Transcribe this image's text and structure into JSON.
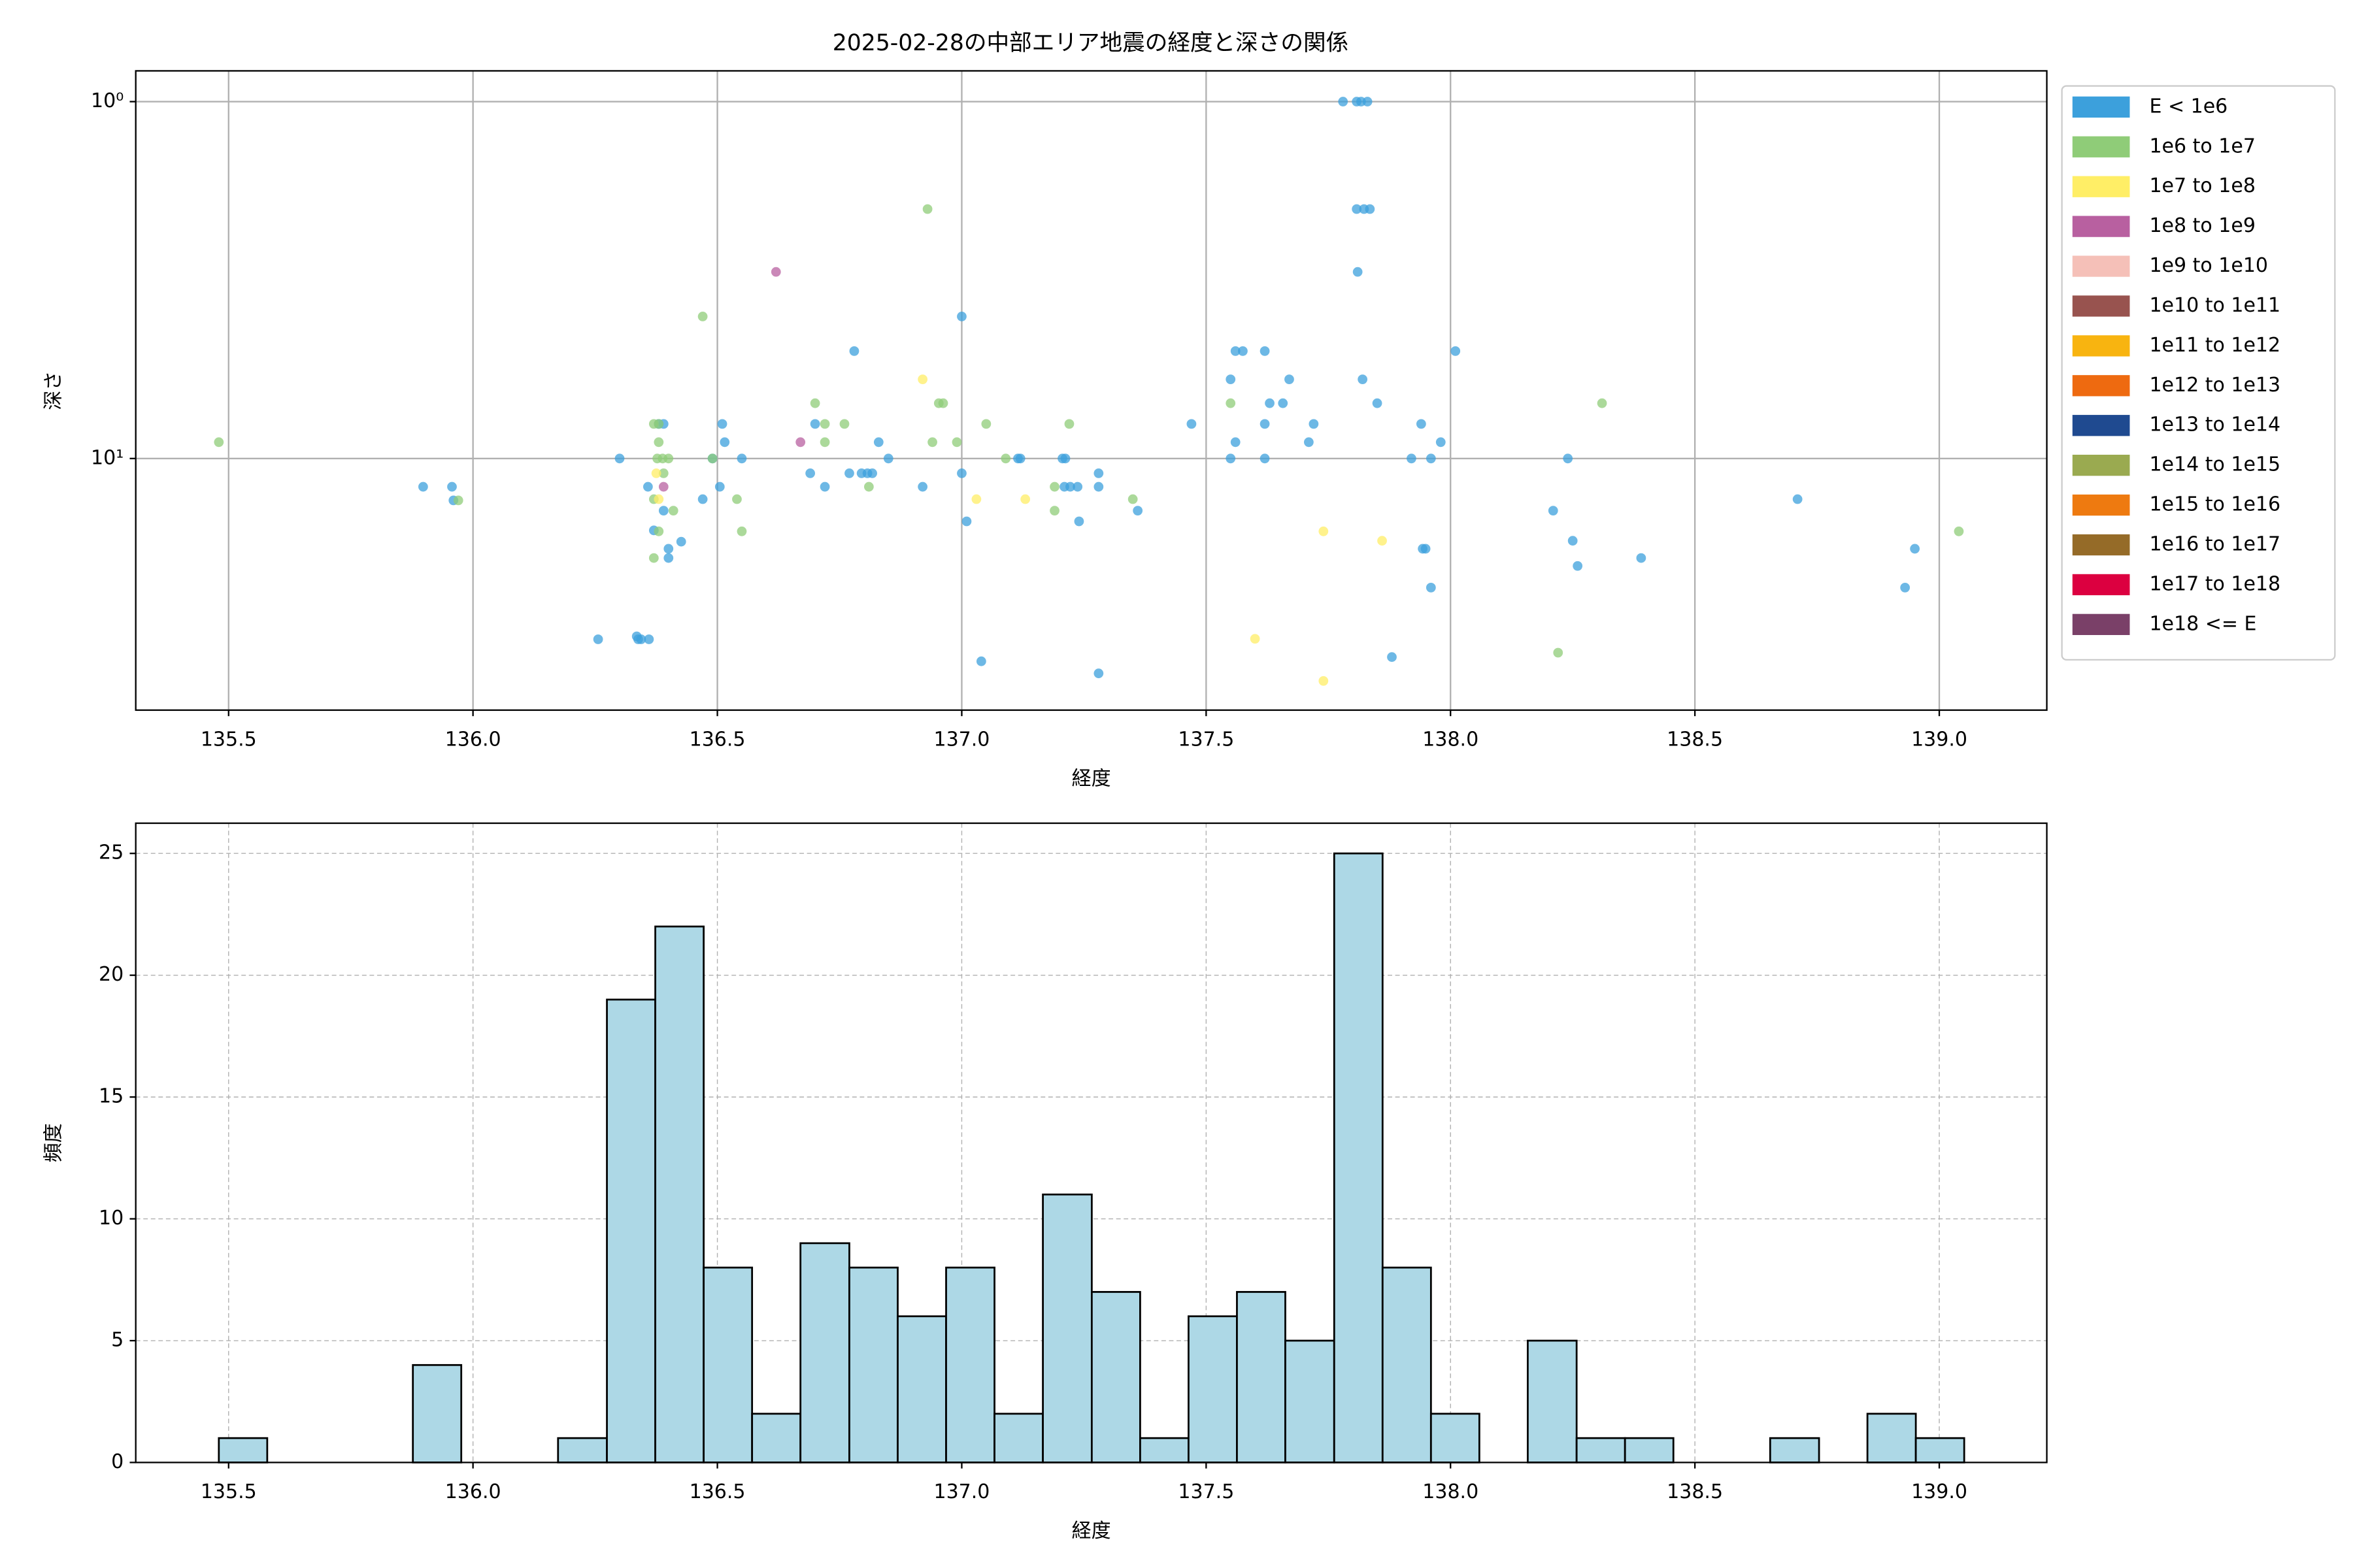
{
  "chart_data": [
    {
      "type": "scatter",
      "title": "2025-02-28の中部エリア地震の経度と深さの関係",
      "xlabel": "経度",
      "ylabel": "深さ",
      "xlim": [
        135.31,
        139.22
      ],
      "xticks": [
        135.5,
        {
          "value": 136,
          "label": "136.0"
        },
        136.5,
        {
          "value": 137,
          "label": "137.0"
        },
        137.5,
        {
          "value": 138,
          "label": "138.0"
        },
        138.5,
        {
          "value": 139,
          "label": "139.0"
        }
      ],
      "ylim": [
        50.7,
        0.82
      ],
      "yscale": "log",
      "y_inverted": true,
      "yticks": [
        {
          "value": 1,
          "label": "10⁰"
        },
        {
          "value": 10,
          "label": "10¹"
        }
      ],
      "grid": true,
      "grid_style": "solid",
      "legend": "outside upper right",
      "series": [
        {
          "name": "E < 1e6",
          "color": "#3ca0dc",
          "x": [
            135.898,
            135.957,
            135.96,
            136.3,
            136.256,
            136.335,
            136.338,
            136.344,
            136.36,
            136.358,
            136.37,
            136.38,
            136.39,
            136.39,
            136.4,
            136.4,
            136.426,
            136.49,
            136.47,
            136.51,
            136.515,
            136.505,
            136.55,
            136.69,
            136.7,
            136.72,
            136.78,
            136.77,
            136.795,
            136.807,
            136.817,
            136.83,
            136.85,
            136.92,
            137.0,
            137.0,
            137.01,
            137.04,
            137.115,
            137.12,
            137.206,
            137.212,
            137.21,
            137.222,
            137.237,
            137.24,
            137.28,
            137.28,
            137.28,
            137.36,
            137.47,
            137.55,
            137.56,
            137.575,
            137.62,
            137.55,
            137.56,
            137.62,
            137.62,
            137.63,
            137.657,
            137.67,
            137.71,
            137.72,
            137.78,
            137.808,
            137.817,
            137.83,
            137.808,
            137.823,
            137.835,
            137.81,
            137.82,
            137.85,
            137.88,
            137.92,
            137.94,
            137.943,
            137.949,
            137.96,
            137.96,
            137.98,
            138.01,
            138.21,
            138.24,
            138.25,
            138.26,
            138.39,
            138.71,
            138.93,
            138.95
          ],
          "values": [
            12.0,
            12.0,
            13.1,
            10,
            32.1,
            31.5,
            32.1,
            32.1,
            32.1,
            12,
            15.9,
            8.0,
            8.0,
            14.0,
            17.9,
            19.0,
            17.1,
            10,
            13.0,
            8.0,
            9.0,
            12,
            10,
            11.0,
            8.0,
            12,
            5.0,
            11.0,
            11.0,
            11.0,
            11.0,
            9.0,
            10,
            12,
            4.0,
            11,
            15.0,
            37.0,
            10,
            10,
            10,
            10,
            12,
            12,
            12,
            15,
            11,
            12,
            40,
            14,
            8.0,
            6.0,
            5.0,
            5.0,
            5,
            10,
            9,
            10,
            8,
            7.0,
            7.0,
            6.0,
            9,
            8,
            1.0,
            1.0,
            1.0,
            1.0,
            2.0,
            2.0,
            2.0,
            3.0,
            6.0,
            7.0,
            36,
            10,
            8,
            17.9,
            17.9,
            10,
            23,
            9,
            5,
            14,
            10,
            17,
            20,
            19,
            13,
            23,
            17.9
          ]
        },
        {
          "name": "1e6 to 1e7",
          "color": "#8fcc78",
          "x": [
            135.48,
            135.97,
            136.47,
            136.37,
            136.38,
            136.38,
            136.377,
            136.388,
            136.4,
            136.39,
            136.37,
            136.41,
            136.37,
            136.38,
            136.49,
            136.54,
            136.55,
            136.7,
            136.72,
            136.72,
            136.76,
            136.81,
            136.93,
            136.953,
            136.962,
            136.94,
            136.99,
            137.05,
            137.09,
            137.19,
            137.19,
            137.22,
            137.35,
            137.55,
            138.22,
            138.31,
            139.04
          ],
          "values": [
            9.0,
            13.1,
            4.0,
            8,
            8,
            9,
            10,
            10,
            10,
            11,
            13,
            14,
            19,
            16,
            10,
            13,
            16,
            7,
            8,
            9,
            8,
            12,
            2,
            7,
            7,
            9,
            9,
            8,
            10,
            14,
            12,
            8,
            13,
            7,
            35,
            7,
            16
          ]
        },
        {
          "name": "1e7 to 1e8",
          "color": "#ffee66",
          "x": [
            136.375,
            136.38,
            136.92,
            137.03,
            137.13,
            137.6,
            137.74,
            137.86,
            137.74
          ],
          "values": [
            11,
            13,
            6,
            13,
            13,
            32,
            16,
            17,
            42
          ]
        },
        {
          "name": "1e8 to 1e9",
          "color": "#b860a0",
          "x": [
            136.62,
            136.67,
            136.39
          ],
          "values": [
            3.0,
            9,
            12
          ]
        },
        {
          "name": "1e9 to 1e10",
          "color": "#f5c0b8",
          "x": [],
          "values": []
        },
        {
          "name": "1e10 to 1e11",
          "color": "#98534f",
          "x": [],
          "values": []
        },
        {
          "name": "1e11 to 1e12",
          "color": "#f8b410",
          "x": [],
          "values": []
        },
        {
          "name": "1e12 to 1e13",
          "color": "#ee6a10",
          "x": [],
          "values": []
        },
        {
          "name": "1e13 to 1e14",
          "color": "#1f4a90",
          "x": [],
          "values": []
        },
        {
          "name": "1e14 to 1e15",
          "color": "#9aaa50",
          "x": [],
          "values": []
        },
        {
          "name": "1e15 to 1e16",
          "color": "#ee7a10",
          "x": [],
          "values": []
        },
        {
          "name": "1e16 to 1e17",
          "color": "#956b28",
          "x": [],
          "values": []
        },
        {
          "name": "1e17 to 1e18",
          "color": "#dc0040",
          "x": [],
          "values": []
        },
        {
          "name": "1e18 <= E",
          "color": "#7a4068",
          "x": [],
          "values": []
        }
      ]
    },
    {
      "type": "histogram",
      "xlabel": "経度",
      "ylabel": "頻度",
      "xlim": [
        135.31,
        139.22
      ],
      "xticks": [
        135.5,
        {
          "value": 136,
          "label": "136.0"
        },
        136.5,
        {
          "value": 137,
          "label": "137.0"
        },
        137.5,
        {
          "value": 138,
          "label": "138.0"
        },
        138.5,
        {
          "value": 139,
          "label": "139.0"
        }
      ],
      "ylim": [
        0,
        26.24
      ],
      "yticks": [
        0,
        5,
        10,
        15,
        20,
        25
      ],
      "grid": true,
      "grid_style": "dashed",
      "color": "#add8e6",
      "edgecolor": "#000000",
      "bins": [
        135.48,
        135.579,
        135.678,
        135.778,
        135.877,
        135.976,
        136.075,
        136.174,
        136.274,
        136.373,
        136.472,
        136.571,
        136.67,
        136.77,
        136.869,
        136.968,
        137.067,
        137.166,
        137.266,
        137.365,
        137.464,
        137.563,
        137.662,
        137.762,
        137.861,
        137.96,
        138.059,
        138.158,
        138.258,
        138.357,
        138.456,
        138.555,
        138.654,
        138.754,
        138.853,
        138.952,
        139.051
      ],
      "values": [
        1,
        0,
        0,
        0,
        4,
        0,
        0,
        1,
        19,
        22,
        8,
        2,
        9,
        8,
        6,
        8,
        2,
        11,
        7,
        1,
        6,
        7,
        5,
        25,
        8,
        2,
        0,
        5,
        1,
        1,
        0,
        0,
        1,
        0,
        2,
        1
      ]
    }
  ]
}
